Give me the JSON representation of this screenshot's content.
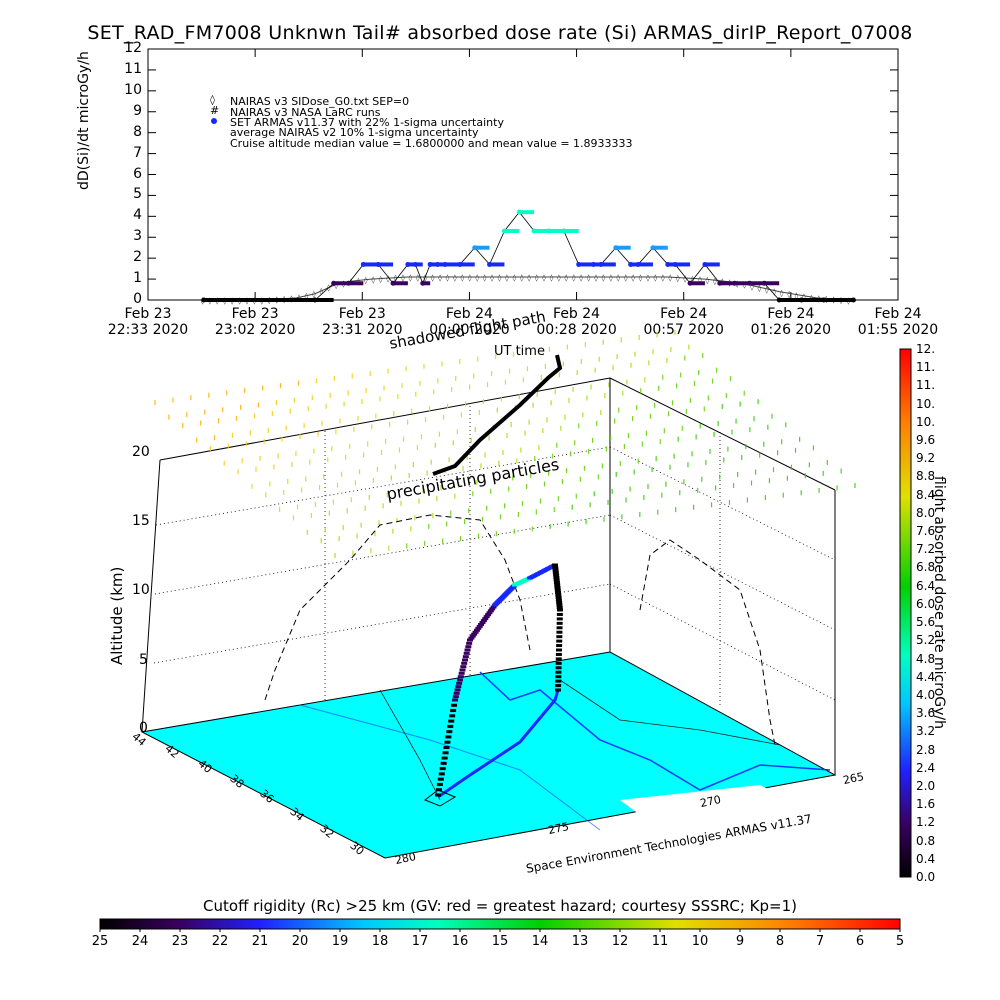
{
  "title": "SET_RAD_FM7008  Unknwn Tail#  absorbed dose rate (Si) ARMAS_dirIP_Report_07008",
  "timeseries": {
    "ylabel": "dD(Si)/dt microGy/h",
    "xlabel": "UT time",
    "yticks": [
      "0",
      "1",
      "2",
      "3",
      "4",
      "5",
      "6",
      "7",
      "8",
      "9",
      "10",
      "11",
      "12"
    ],
    "xticks": [
      {
        "l1": "Feb 23",
        "l2": "22:33 2020"
      },
      {
        "l1": "Feb 23",
        "l2": "23:02 2020"
      },
      {
        "l1": "Feb 23",
        "l2": "23:31 2020"
      },
      {
        "l1": "Feb 24",
        "l2": "00:00 2020"
      },
      {
        "l1": "Feb 24",
        "l2": "00:28 2020"
      },
      {
        "l1": "Feb 24",
        "l2": "00:57 2020"
      },
      {
        "l1": "Feb 24",
        "l2": "01:26 2020"
      },
      {
        "l1": "Feb 24",
        "l2": "01:55 2020"
      }
    ],
    "legend": [
      "NAIRAS v3 SIDose_G0.txt SEP=0",
      "NAIRAS v3 NASA LaRC runs",
      "SET ARMAS v11.37 with 22% 1-sigma uncertainty",
      "average NAIRAS v2 10% 1-sigma uncertainty",
      "Cruise altitude median value = 1.6800000 and mean value = 1.8933333"
    ]
  },
  "chart_data": [
    {
      "type": "scatter",
      "title": "SET_RAD_FM7008  Unknwn Tail#  absorbed dose rate (Si) ARMAS_dirIP_Report_07008",
      "xlabel": "UT time",
      "ylabel": "dD(Si)/dt microGy/h",
      "ylim": [
        0,
        12
      ],
      "xlim_minutes_from_2233": [
        0,
        202
      ],
      "series": [
        {
          "name": "SET ARMAS v11.37 with 22% 1-sigma uncertainty",
          "x_minutes": [
            15,
            45,
            50,
            54,
            58,
            62,
            66,
            70,
            72,
            74,
            76,
            78,
            80,
            84,
            88,
            92,
            96,
            100,
            104,
            108,
            112,
            116,
            120,
            122,
            126,
            130,
            132,
            136,
            140,
            142,
            146,
            150,
            154,
            158,
            162,
            166,
            170,
            176,
            182,
            190
          ],
          "y": [
            0,
            0,
            0.8,
            0.8,
            1.7,
            1.7,
            0.8,
            1.7,
            1.7,
            0.8,
            1.7,
            1.7,
            1.7,
            1.7,
            2.5,
            1.7,
            3.3,
            4.2,
            3.3,
            3.3,
            3.3,
            1.7,
            1.7,
            1.7,
            2.5,
            1.7,
            1.7,
            2.5,
            1.7,
            1.7,
            0.8,
            1.7,
            0.8,
            0.8,
            0.8,
            0.8,
            0,
            0,
            0,
            0
          ]
        },
        {
          "name": "NAIRAS v3 SIDose_G0.txt SEP=0",
          "x_minutes": [
            15,
            30,
            40,
            45,
            50,
            55,
            60,
            70,
            80,
            90,
            100,
            110,
            120,
            130,
            140,
            150,
            155,
            160,
            165,
            170,
            180,
            190
          ],
          "y": [
            0,
            0,
            0.1,
            0.3,
            0.7,
            0.9,
            1.0,
            1.1,
            1.1,
            1.1,
            1.1,
            1.1,
            1.1,
            1.1,
            1.1,
            1.0,
            0.9,
            0.8,
            0.6,
            0.4,
            0.1,
            0
          ]
        }
      ]
    }
  ],
  "scene": {
    "zlabel": "Altitude (km)",
    "zticks": [
      "0",
      "5",
      "10",
      "15",
      "20"
    ],
    "lat_ticks": [
      "44",
      "42",
      "40",
      "38",
      "36",
      "34",
      "32",
      "30"
    ],
    "lon_ticks": [
      "280",
      "275",
      "270",
      "265"
    ],
    "annotations": {
      "precip": "precipitating particles",
      "shadow": "shadowed flight path",
      "footer": "Space Environment Technologies ARMAS v11.37"
    }
  },
  "colorbar": {
    "title": "flight absorbed dose rate microGy/h",
    "labels": [
      "12.",
      "11.",
      "11.",
      "10.",
      "10.",
      "9.6",
      "9.2",
      "8.8",
      "8.4",
      "8.0",
      "7.6",
      "7.2",
      "6.8",
      "6.4",
      "6.0",
      "5.6",
      "5.2",
      "4.8",
      "4.4",
      "4.0",
      "3.6",
      "3.2",
      "2.8",
      "2.4",
      "2.0",
      "1.6",
      "1.2",
      "0.8",
      "0.4",
      "0.0"
    ]
  },
  "rigidity_bar": {
    "title": "Cutoff rigidity (Rc) >25 km (GV: red = greatest hazard; courtesy SSSRC; Kp=1)",
    "labels": [
      "25",
      "24",
      "23",
      "22",
      "21",
      "20",
      "19",
      "18",
      "17",
      "16",
      "15",
      "14",
      "13",
      "12",
      "11",
      "10",
      "9",
      "8",
      "7",
      "6",
      "5"
    ]
  }
}
